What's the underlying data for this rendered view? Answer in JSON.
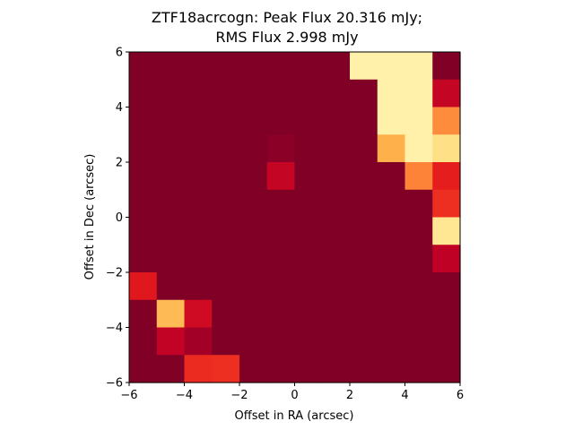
{
  "chart_data": {
    "type": "heatmap",
    "title_lines": [
      "ZTF18acrcogn: Peak Flux 20.316 mJy;",
      "RMS Flux 2.998 mJy"
    ],
    "xlabel": "Offset in RA (arcsec)",
    "ylabel": "Offset in Dec (arcsec)",
    "xlim": [
      -6,
      6
    ],
    "ylim": [
      -6,
      6
    ],
    "xticks": [
      "-6",
      "-4",
      "-2",
      "0",
      "2",
      "4",
      "6"
    ],
    "yticks": [
      "-6",
      "-4",
      "-2",
      "0",
      "2",
      "4",
      "6"
    ],
    "colormap": "YlOrRd",
    "grid": false,
    "x_centers": [
      -5.5,
      -4.5,
      -3.5,
      -2.5,
      -1.5,
      -0.5,
      0.5,
      1.5,
      2.5,
      3.5,
      4.5,
      5.5
    ],
    "y_centers": [
      5.5,
      4.5,
      3.5,
      2.5,
      1.5,
      0.5,
      -0.5,
      -1.5,
      -2.5,
      -3.5,
      -4.5,
      -5.5
    ],
    "values": [
      [
        0,
        0,
        0,
        0,
        0,
        0,
        0,
        0,
        0.9,
        0.9,
        0.9,
        0
      ],
      [
        0,
        0,
        0,
        0,
        0,
        0,
        0,
        0,
        0,
        0.9,
        0.9,
        0.15
      ],
      [
        0,
        0,
        0,
        0,
        0,
        0,
        0,
        0,
        0,
        0.9,
        0.9,
        0.5
      ],
      [
        0,
        0,
        0,
        0,
        0,
        0.02,
        0,
        0,
        0,
        0.62,
        0.9,
        0.8
      ],
      [
        0,
        0,
        0,
        0,
        0,
        0.15,
        0,
        0,
        0,
        0,
        0.48,
        0.26
      ],
      [
        0,
        0,
        0,
        0,
        0,
        0,
        0,
        0,
        0,
        0,
        0,
        0.3
      ],
      [
        0,
        0,
        0,
        0,
        0,
        0,
        0,
        0,
        0,
        0,
        0,
        0.84
      ],
      [
        0,
        0,
        0,
        0,
        0,
        0,
        0,
        0,
        0,
        0,
        0,
        0.13
      ],
      [
        0.24,
        0,
        0,
        0,
        0,
        0,
        0,
        0,
        0,
        0,
        0,
        0
      ],
      [
        0,
        0.65,
        0.18,
        0,
        0,
        0,
        0,
        0,
        0,
        0,
        0,
        0
      ],
      [
        0,
        0.14,
        0.07,
        0,
        0,
        0,
        0,
        0,
        0,
        0,
        0,
        0
      ],
      [
        0,
        0,
        0.29,
        0.3,
        0,
        0,
        0,
        0,
        0,
        0,
        0,
        0
      ]
    ]
  }
}
